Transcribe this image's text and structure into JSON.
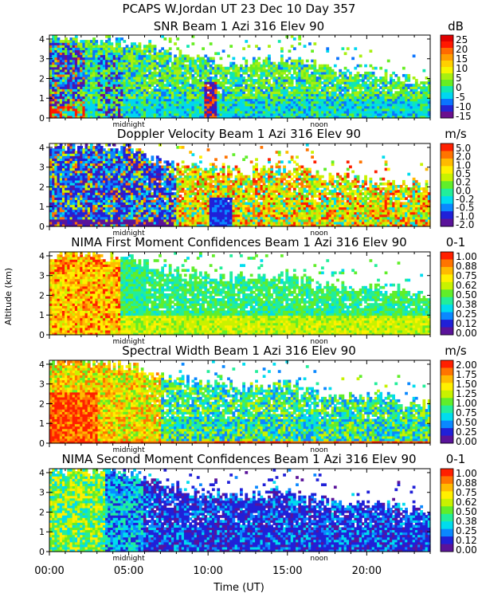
{
  "title_line1": "PCAPS W.Jordan UT  23 Dec 10 Day 357",
  "y_axis_label": "Altitude (km)",
  "x_axis_label": "Time (UT)",
  "x_tick_labels": [
    "00:00",
    "05:00",
    "10:00",
    "15:00",
    "20:00"
  ],
  "x_ticks_hours": [
    0,
    5,
    10,
    15,
    20
  ],
  "x_range_hours": [
    0,
    24
  ],
  "y_range_km": [
    0,
    4.2
  ],
  "midnight_label": "midnight",
  "midnight_hour": 5,
  "noon_label": "noon",
  "noon_hour": 17,
  "colors": {
    "snr": [
      "#9a9a9a",
      "#6a0f8e",
      "#2424d4",
      "#0a74ff",
      "#00d6f0",
      "#10e8b0",
      "#66ee22",
      "#a8f010",
      "#f6f600",
      "#ffd000",
      "#ff9e00",
      "#ff6a00",
      "#ff1800",
      "#e00000"
    ],
    "palette": [
      "#5a139a",
      "#2020d8",
      "#0a88ff",
      "#00dcee",
      "#22ee9a",
      "#60ee2a",
      "#c8f200",
      "#fff000",
      "#ffba00",
      "#ff7400",
      "#ff2000"
    ]
  },
  "chart_data": [
    {
      "type": "heatmap",
      "title": "SNR Beam 1 Azi 316 Elev 90",
      "unit": "dB",
      "colorbar_ticks": [
        "25",
        "20",
        "15",
        "10",
        "5",
        "0",
        "-5",
        "-10",
        "-15"
      ],
      "y_ticks": [
        "0",
        "1",
        "2",
        "3",
        "4"
      ],
      "ylim": [
        0,
        4.2
      ],
      "xlim_hours": [
        0,
        24
      ],
      "coverage_top_km": [
        4.1,
        4.1,
        4.1,
        4.0,
        3.9,
        3.8,
        3.6,
        3.4,
        3.2,
        3.0,
        2.9,
        2.8,
        2.8,
        2.9,
        3.0,
        3.0,
        2.9,
        2.6,
        2.4,
        2.3,
        2.2,
        2.2,
        2.1,
        2.0,
        1.9
      ]
    },
    {
      "type": "heatmap",
      "title": "Doppler Velocity Beam 1 Azi 316 Elev 90",
      "unit": "m/s",
      "colorbar_ticks": [
        "5.0",
        "2.0",
        "1.0",
        "0.5",
        "0.2",
        "0.0",
        "-0.2",
        "-0.5",
        "-1.0",
        "-2.0"
      ],
      "y_ticks": [
        "0",
        "1",
        "2",
        "3",
        "4"
      ],
      "ylim": [
        0,
        4.2
      ],
      "xlim_hours": [
        0,
        24
      ],
      "coverage_top_km": [
        4.1,
        4.1,
        4.1,
        4.1,
        4.0,
        3.9,
        3.7,
        3.3,
        3.1,
        3.2,
        3.0,
        2.9,
        2.8,
        2.9,
        3.0,
        3.0,
        2.8,
        2.6,
        2.5,
        2.4,
        2.3,
        2.3,
        2.2,
        2.1,
        2.0
      ]
    },
    {
      "type": "heatmap",
      "title": "NIMA First Moment Confidences Beam 1 Azi 316 Elev 90",
      "unit": "0-1",
      "colorbar_ticks": [
        "1.00",
        "0.88",
        "0.75",
        "0.62",
        "0.50",
        "0.38",
        "0.25",
        "0.12",
        "0.00"
      ],
      "y_ticks": [
        "0",
        "1",
        "2",
        "3",
        "4"
      ],
      "ylim": [
        0,
        4.2
      ],
      "xlim_hours": [
        0,
        24
      ],
      "coverage_top_km": [
        4.1,
        4.1,
        4.1,
        4.1,
        4.0,
        3.9,
        3.7,
        3.4,
        3.2,
        3.1,
        3.0,
        2.9,
        2.9,
        2.9,
        3.0,
        3.0,
        2.8,
        2.6,
        2.5,
        2.4,
        2.4,
        2.3,
        2.2,
        2.1,
        2.0
      ]
    },
    {
      "type": "heatmap",
      "title": "Spectral Width Beam 1 Azi 316 Elev 90",
      "unit": "m/s",
      "colorbar_ticks": [
        "2.00",
        "1.75",
        "1.50",
        "1.25",
        "1.00",
        "0.75",
        "0.50",
        "0.25",
        "0.00"
      ],
      "y_ticks": [
        "0",
        "1",
        "2",
        "3",
        "4"
      ],
      "ylim": [
        0,
        4.2
      ],
      "xlim_hours": [
        0,
        24
      ],
      "coverage_top_km": [
        4.1,
        4.1,
        4.1,
        4.1,
        4.0,
        3.9,
        3.7,
        3.4,
        3.2,
        3.1,
        3.0,
        2.9,
        2.9,
        2.9,
        3.0,
        3.0,
        2.8,
        2.6,
        2.5,
        2.4,
        2.4,
        2.3,
        2.2,
        2.1,
        2.0
      ]
    },
    {
      "type": "heatmap",
      "title": "NIMA Second Moment Confidences Beam 1 Azi 316 Elev 90",
      "unit": "0-1",
      "colorbar_ticks": [
        "1.00",
        "0.88",
        "0.75",
        "0.62",
        "0.50",
        "0.38",
        "0.25",
        "0.12",
        "0.00"
      ],
      "y_ticks": [
        "0",
        "1",
        "2",
        "3",
        "4"
      ],
      "ylim": [
        0,
        4.2
      ],
      "xlim_hours": [
        0,
        24
      ],
      "coverage_top_km": [
        4.1,
        4.1,
        4.1,
        4.1,
        4.0,
        3.9,
        3.7,
        3.4,
        3.2,
        3.1,
        3.0,
        2.9,
        2.9,
        2.9,
        3.0,
        3.0,
        2.8,
        2.6,
        2.5,
        2.4,
        2.4,
        2.3,
        2.2,
        2.1,
        2.0
      ]
    }
  ]
}
